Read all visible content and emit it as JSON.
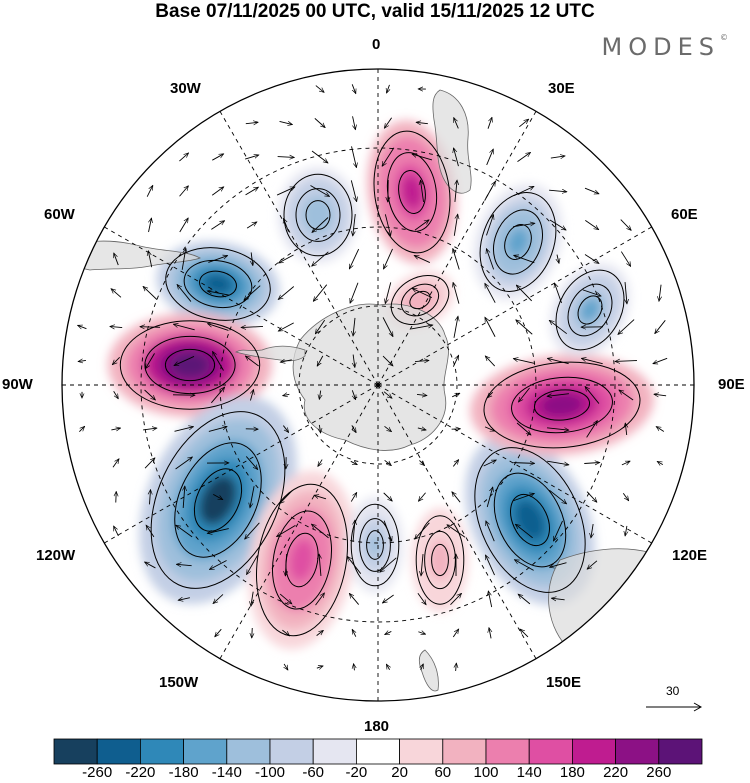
{
  "title": "Base 07/11/2025 00 UTC, valid 15/11/2025 12 UTC",
  "brand": "MODES",
  "brand_mark": "©",
  "longitude_labels": {
    "lon_0": "0",
    "lon_30e": "30E",
    "lon_60e": "60E",
    "lon_90e": "90E",
    "lon_120e": "120E",
    "lon_150e": "150E",
    "lon_180": "180",
    "lon_150w": "150W",
    "lon_120w": "120W",
    "lon_90w": "90W",
    "lon_60w": "60W",
    "lon_30w": "30W"
  },
  "reference_vector": {
    "label": "30"
  },
  "colorbar": {
    "colors": [
      "#17405e",
      "#0f5e8f",
      "#2f88b8",
      "#5fa3cc",
      "#9ebfdc",
      "#c3cfe5",
      "#e5e6f1",
      "#ffffff",
      "#f8d6da",
      "#f2b2c0",
      "#ec7fae",
      "#df4fa3",
      "#bf1c90",
      "#8c1185",
      "#5c1377"
    ],
    "tick_labels": [
      "-260",
      "-220",
      "-180",
      "-140",
      "-100",
      "-60",
      "-20",
      "20",
      "60",
      "100",
      "140",
      "180",
      "220",
      "260"
    ]
  },
  "anomaly_centers": [
    {
      "name": "high-south-atlantic",
      "sign": "positive",
      "value": 200
    },
    {
      "name": "low-weddell-30w",
      "sign": "negative",
      "value": -120
    },
    {
      "name": "low-60w",
      "sign": "negative",
      "value": -240
    },
    {
      "name": "high-90w",
      "sign": "positive",
      "value": 270
    },
    {
      "name": "low-120w",
      "sign": "negative",
      "value": -260
    },
    {
      "name": "high-150w",
      "sign": "positive",
      "value": 160
    },
    {
      "name": "low-180",
      "sign": "negative",
      "value": -110
    },
    {
      "name": "high-150e",
      "sign": "positive",
      "value": 80
    },
    {
      "name": "low-120e",
      "sign": "negative",
      "value": -250
    },
    {
      "name": "high-90e",
      "sign": "positive",
      "value": 250
    },
    {
      "name": "low-60e",
      "sign": "negative",
      "value": -150
    },
    {
      "name": "low-45e",
      "sign": "negative",
      "value": -140
    },
    {
      "name": "high-20e",
      "sign": "positive",
      "value": 100
    }
  ]
}
